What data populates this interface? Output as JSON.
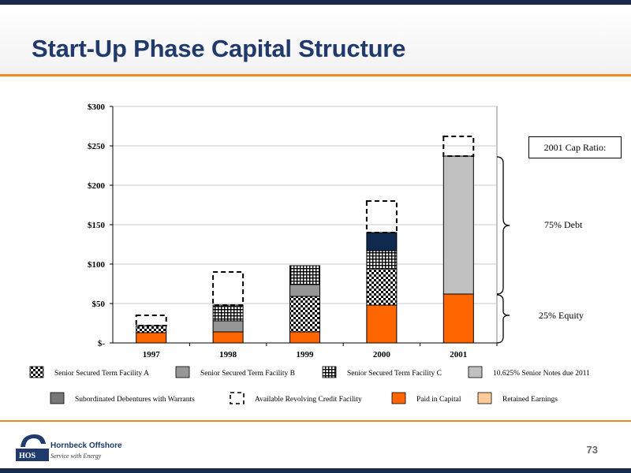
{
  "slide": {
    "title": "Start-Up Phase Capital Structure",
    "page_number": "73",
    "logo_name": "Hornbeck Offshore",
    "logo_tagline": "Service with Energy",
    "logo_letters": "HOS"
  },
  "annotations": {
    "cap_ratio_label": "2001 Cap Ratio:",
    "debt_label": "75% Debt",
    "equity_label": "25% Equity"
  },
  "colors": {
    "paid_in_capital": "#ff6600",
    "senior_b": "#969696",
    "notes": "#c0c0c0",
    "subordinated": "#777777",
    "retained": "#ffcc99",
    "navy_segment": "#0f2a4e",
    "accent": "#f08a24",
    "title": "#1f3a6b"
  },
  "chart_data": {
    "type": "bar",
    "stacked": true,
    "categories": [
      "1997",
      "1998",
      "1999",
      "2000",
      "2001"
    ],
    "y_tick_labels": [
      "$-",
      "$50",
      "$100",
      "$150",
      "$200",
      "$250",
      "$300"
    ],
    "y_ticks": [
      0,
      50,
      100,
      150,
      200,
      250,
      300
    ],
    "ylim": [
      0,
      300
    ],
    "grid": true,
    "legend_position": "bottom",
    "series": [
      {
        "name": "Paid in Capital",
        "values": [
          13,
          14,
          14,
          48,
          62
        ],
        "fill": "#ff6600",
        "pattern": "solid"
      },
      {
        "name": "Senior Secured Term Facility A",
        "values": [
          9,
          0,
          45,
          46,
          0
        ],
        "fill": "checker",
        "pattern": "checker"
      },
      {
        "name": "Senior Secured Term Facility B",
        "values": [
          0,
          14,
          15,
          0,
          0
        ],
        "fill": "#969696",
        "pattern": "solid"
      },
      {
        "name": "Senior Secured Term Facility C",
        "values": [
          0,
          20,
          24,
          23,
          0
        ],
        "fill": "grid",
        "pattern": "grid"
      },
      {
        "name": "",
        "values": [
          0,
          0,
          0,
          23,
          0
        ],
        "fill": "#0f2a4e",
        "pattern": "solid"
      },
      {
        "name": "10.625% Senior Notes due 2011",
        "values": [
          0,
          0,
          0,
          0,
          175
        ],
        "fill": "#c0c0c0",
        "pattern": "solid"
      },
      {
        "name": "Available Revolving Credit Facility",
        "values": [
          13,
          42,
          0,
          40,
          25
        ],
        "fill": "none",
        "pattern": "dashed"
      }
    ],
    "legend": [
      {
        "name": "Senior Secured Term Facility A",
        "pattern": "checker"
      },
      {
        "name": "Senior Secured Term Facility B",
        "pattern": "solid",
        "fill": "#969696"
      },
      {
        "name": "Senior Secured Term Facility C",
        "pattern": "grid"
      },
      {
        "name": "10.625% Senior Notes due 2011",
        "pattern": "solid",
        "fill": "#c0c0c0"
      },
      {
        "name": "Subordinated Debentures with Warrants",
        "pattern": "solid",
        "fill": "#777777"
      },
      {
        "name": "Available Revolving Credit Facility",
        "pattern": "dashed"
      },
      {
        "name": "Paid in Capital",
        "pattern": "solid",
        "fill": "#ff6600"
      },
      {
        "name": "Retained Earnings",
        "pattern": "solid",
        "fill": "#ffcc99"
      }
    ]
  }
}
